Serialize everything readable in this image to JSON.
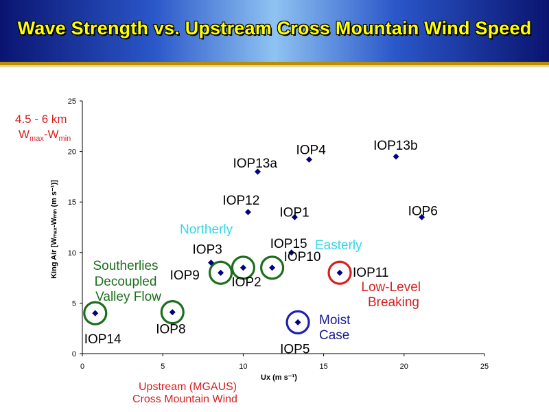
{
  "title": "Wave Strength vs. Upstream Cross Mountain Wind Speed",
  "chart_data": {
    "type": "scatter",
    "xlabel": "Ux (m s⁻¹)",
    "ylabel": "King Air [Wₘₐₓ-Wₘᵢₙ (m s⁻¹)]",
    "xlim": [
      0,
      25
    ],
    "ylim": [
      0,
      25
    ],
    "xticks": [
      "0",
      "5",
      "10",
      "15",
      "20",
      "25"
    ],
    "yticks": [
      "0",
      "5",
      "10",
      "15",
      "20",
      "25"
    ],
    "marker_color": "#000080",
    "points": [
      {
        "label": "IOP14",
        "x": 0.8,
        "y": 4.0,
        "circle": "green"
      },
      {
        "label": "IOP8",
        "x": 5.6,
        "y": 4.1,
        "circle": "green"
      },
      {
        "label": "IOP3",
        "x": 8.0,
        "y": 9.0,
        "circle": null
      },
      {
        "label": "IOP9",
        "x": 8.6,
        "y": 8.0,
        "circle": "green"
      },
      {
        "label": "IOP2",
        "x": 10.0,
        "y": 8.5,
        "circle": "green"
      },
      {
        "label": "IOP10",
        "x": 11.8,
        "y": 8.5,
        "circle": "green"
      },
      {
        "label": "IOP15",
        "x": 13.0,
        "y": 10.0,
        "circle": null
      },
      {
        "label": "IOP5",
        "x": 13.4,
        "y": 3.1,
        "circle": "blue"
      },
      {
        "label": "IOP11",
        "x": 16.0,
        "y": 8.0,
        "circle": "red"
      },
      {
        "label": "IOP13a",
        "x": 10.9,
        "y": 18.0,
        "circle": null
      },
      {
        "label": "IOP12",
        "x": 10.3,
        "y": 14.0,
        "circle": null
      },
      {
        "label": "IOP1",
        "x": 13.2,
        "y": 13.5,
        "circle": null
      },
      {
        "label": "IOP4",
        "x": 14.1,
        "y": 19.2,
        "circle": null
      },
      {
        "label": "IOP13b",
        "x": 19.5,
        "y": 19.5,
        "circle": null
      },
      {
        "label": "IOP6",
        "x": 21.1,
        "y": 13.5,
        "circle": null
      }
    ]
  },
  "annotations": {
    "corner_line1": "4.5 - 6 km",
    "corner_w1": "W",
    "corner_max": "max",
    "corner_minus": "-W",
    "corner_min": "min",
    "northerly": "Northerly",
    "easterly": "Easterly",
    "southerlies_1": "Southerlies",
    "southerlies_2": "Decoupled",
    "southerlies_3": "Valley Flow",
    "lowlevel_1": "Low-Level",
    "lowlevel_2": "Breaking",
    "moist_1": "Moist",
    "moist_2": "Case",
    "upstream_1": "Upstream (MGAUS)",
    "upstream_2": "Cross Mountain Wind"
  },
  "colors": {
    "green": "#1c6e1c",
    "blue": "#2020b0",
    "red": "#d62020",
    "cyan": "#33d6e6",
    "darkblue": "#1a1a8c"
  }
}
